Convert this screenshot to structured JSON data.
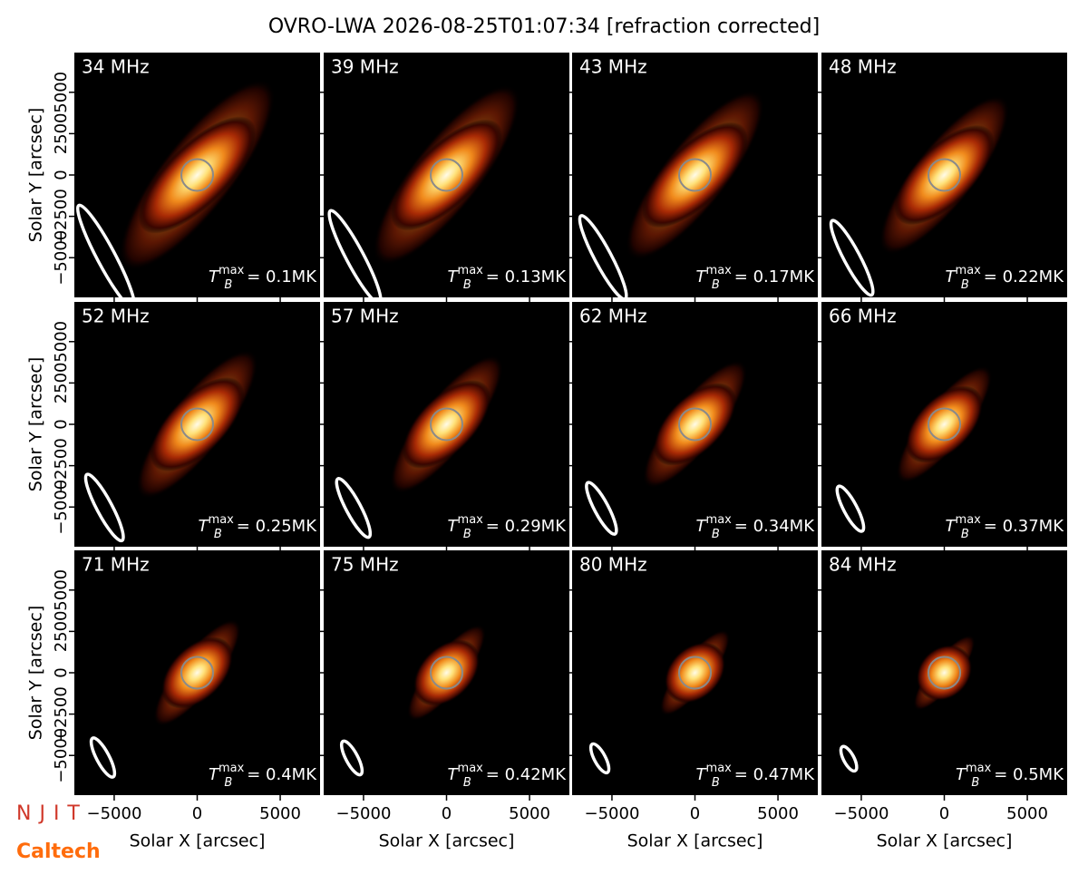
{
  "chart_data": {
    "type": "image-grid",
    "title": "OVRO-LWA 2026-08-25T01:07:34 [refraction corrected]",
    "xlabel": "Solar X [arcsec]",
    "ylabel": "Solar Y [arcsec]",
    "xlim": [
      -7400,
      7400
    ],
    "ylim": [
      -7400,
      7400
    ],
    "xticks": [
      {
        "value": -5000,
        "label": "−5000"
      },
      0,
      5000
    ],
    "yticks": [
      {
        "value": -5000,
        "label": "−5000"
      },
      {
        "value": -2500,
        "label": "−2500"
      },
      0,
      2500,
      5000
    ],
    "tb_symbol": {
      "base": "T",
      "sub": "B",
      "sup": "max"
    },
    "panels": [
      {
        "label": "34 MHz",
        "tb_value": "= 0.1MK"
      },
      {
        "label": "39 MHz",
        "tb_value": "= 0.13MK"
      },
      {
        "label": "43 MHz",
        "tb_value": "= 0.17MK"
      },
      {
        "label": "48 MHz",
        "tb_value": "= 0.22MK"
      },
      {
        "label": "52 MHz",
        "tb_value": "= 0.25MK"
      },
      {
        "label": "57 MHz",
        "tb_value": "= 0.29MK"
      },
      {
        "label": "62 MHz",
        "tb_value": "= 0.34MK"
      },
      {
        "label": "66 MHz",
        "tb_value": "= 0.37MK"
      },
      {
        "label": "71 MHz",
        "tb_value": "= 0.4MK"
      },
      {
        "label": "75 MHz",
        "tb_value": "= 0.42MK"
      },
      {
        "label": "80 MHz",
        "tb_value": "= 0.47MK"
      },
      {
        "label": "84 MHz",
        "tb_value": "= 0.5MK"
      }
    ],
    "logos": [
      "NJIT",
      "Caltech"
    ]
  }
}
